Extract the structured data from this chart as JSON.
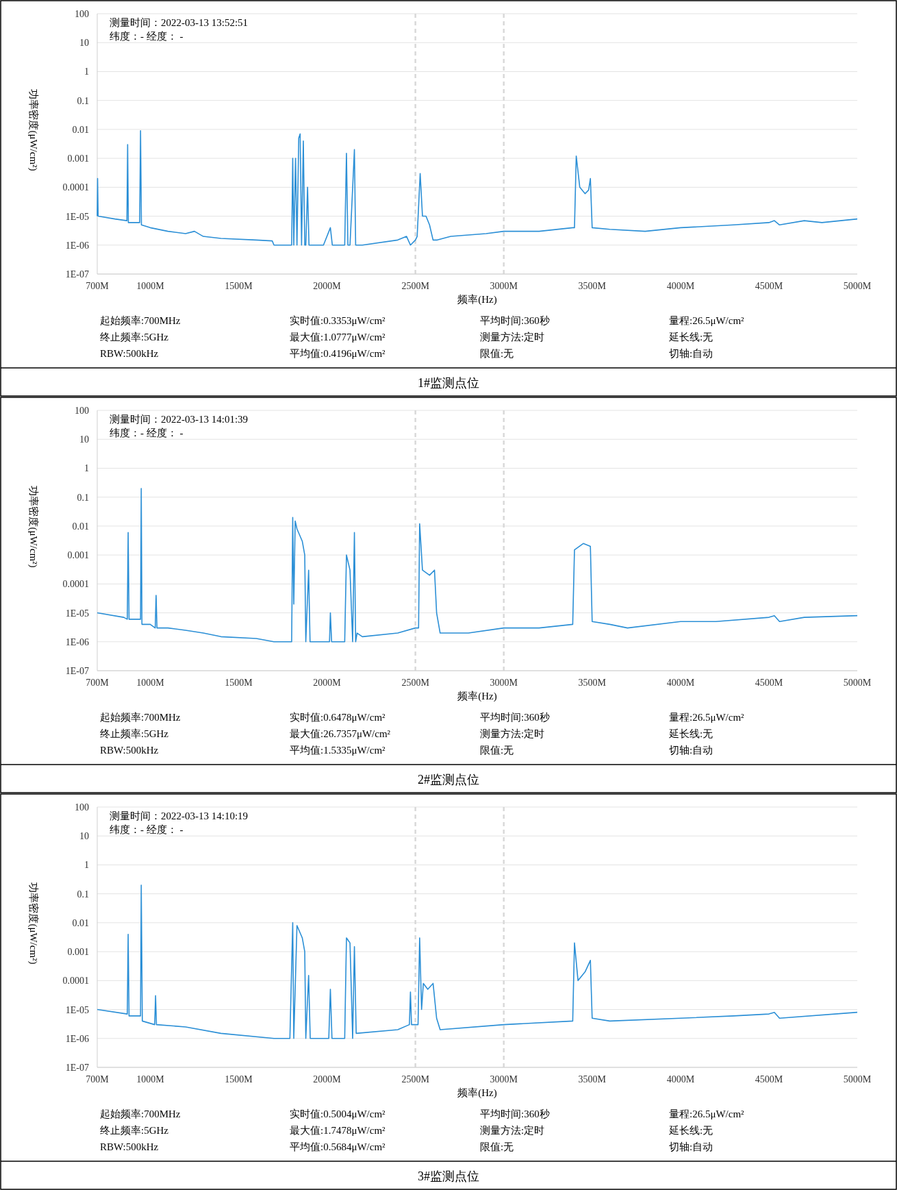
{
  "chart_data": [
    {
      "type": "line",
      "xlabel": "频率(Hz)",
      "ylabel": "功率密度(μW/cm²)",
      "log": "y",
      "grid": "y",
      "annotations": [
        "测量时间：2022-03-13 13:52:51",
        "纬度：- 经度： -",
        "起始频率:700MHz",
        "实时值:0.3353μW/cm²",
        "平均时间:360秒",
        "量程:26.5μW/cm²",
        "终止频率:5GHz",
        "最大值:1.0777μW/cm²",
        "测量方法:定时",
        "延长线:无",
        "RBW:500kHz",
        "平均值:0.4196μW/cm²",
        "限值:无",
        "切轴:自动",
        "1#监测点位"
      ],
      "xlim": [
        700,
        5000
      ],
      "xticks": [
        {
          "value": 700,
          "label": "700M"
        },
        {
          "value": 1000,
          "label": "1000M"
        },
        {
          "value": 1500,
          "label": "1500M"
        },
        {
          "value": 2000,
          "label": "2000M"
        },
        {
          "value": 2500,
          "label": "2500M"
        },
        {
          "value": 3000,
          "label": "3000M"
        },
        {
          "value": 3500,
          "label": "3500M"
        },
        {
          "value": 4000,
          "label": "4000M"
        },
        {
          "value": 4500,
          "label": "4500M"
        },
        {
          "value": 5000,
          "label": "5000M"
        }
      ],
      "ylim": [
        1e-07,
        100
      ],
      "yticks": [
        100,
        10,
        1,
        0.1,
        0.01,
        0.001,
        0.0001,
        {
          "value": 1e-05,
          "label": "1E-05"
        },
        {
          "value": 1e-06,
          "label": "1E-06"
        },
        {
          "value": 1e-07,
          "label": "1E-07"
        }
      ],
      "ref_lines": [
        {
          "axis": "x",
          "value": 2500,
          "color": "#d9d9d9",
          "line_style": "dashed"
        },
        {
          "axis": "x",
          "value": 3000,
          "color": "#d9d9d9",
          "line_style": "dashed"
        }
      ],
      "series": [
        {
          "color": "#2b8fd6",
          "x": [
            700,
            702,
            705,
            800,
            868,
            872,
            876,
            940,
            945,
            950,
            1000,
            1100,
            1200,
            1250,
            1300,
            1400,
            1600,
            1690,
            1700,
            1780,
            1800,
            1806,
            1812,
            1822,
            1830,
            1840,
            1848,
            1856,
            1866,
            1874,
            1880,
            1890,
            1898,
            1980,
            2019,
            2030,
            2100,
            2110,
            2118,
            2130,
            2155,
            2162,
            2200,
            2400,
            2450,
            2472,
            2500,
            2510,
            2527,
            2540,
            2560,
            2580,
            2600,
            2624,
            2700,
            2900,
            3000,
            3200,
            3390,
            3400,
            3410,
            3430,
            3460,
            3480,
            3490,
            3500,
            3600,
            3800,
            4000,
            4300,
            4500,
            4531,
            4560,
            4700,
            4800,
            5000
          ],
          "values": [
            1e-05,
            0.0002,
            1e-05,
            8e-06,
            7e-06,
            0.003,
            6e-06,
            6e-06,
            0.009,
            5e-06,
            4e-06,
            3e-06,
            2.5e-06,
            3e-06,
            2e-06,
            1.7e-06,
            1.5e-06,
            1.4e-06,
            1e-06,
            1e-06,
            1e-06,
            0.001,
            1e-06,
            0.001,
            1e-06,
            0.005,
            0.007,
            1e-06,
            0.004,
            1e-06,
            1e-06,
            0.0001,
            1e-06,
            1e-06,
            4e-06,
            1e-06,
            1e-06,
            0.0015,
            1e-06,
            1e-06,
            0.002,
            1e-06,
            1e-06,
            1.5e-06,
            2e-06,
            1e-06,
            1.5e-06,
            2e-06,
            0.0003,
            1e-05,
            1e-05,
            5e-06,
            1.5e-06,
            1.5e-06,
            2e-06,
            2.5e-06,
            3e-06,
            3e-06,
            4e-06,
            4e-06,
            0.0012,
            0.0001,
            6e-05,
            8e-05,
            0.0002,
            4e-06,
            3.5e-06,
            3e-06,
            4e-06,
            5e-06,
            6e-06,
            7e-06,
            5e-06,
            7e-06,
            6e-06,
            8e-06
          ]
        }
      ]
    },
    {
      "type": "line",
      "xlabel": "频率(Hz)",
      "ylabel": "功率密度(μW/cm²)",
      "log": "y",
      "grid": "y",
      "annotations": [
        "测量时间：2022-03-13 14:01:39",
        "纬度：- 经度： -",
        "起始频率:700MHz",
        "实时值:0.6478μW/cm²",
        "平均时间:360秒",
        "量程:26.5μW/cm²",
        "终止频率:5GHz",
        "最大值:26.7357μW/cm²",
        "测量方法:定时",
        "延长线:无",
        "RBW:500kHz",
        "平均值:1.5335μW/cm²",
        "限值:无",
        "切轴:自动",
        "2#监测点位"
      ],
      "xlim": [
        700,
        5000
      ],
      "xticks": [
        {
          "value": 700,
          "label": "700M"
        },
        {
          "value": 1000,
          "label": "1000M"
        },
        {
          "value": 1500,
          "label": "1500M"
        },
        {
          "value": 2000,
          "label": "2000M"
        },
        {
          "value": 2500,
          "label": "2500M"
        },
        {
          "value": 3000,
          "label": "3000M"
        },
        {
          "value": 3500,
          "label": "3500M"
        },
        {
          "value": 4000,
          "label": "4000M"
        },
        {
          "value": 4500,
          "label": "4500M"
        },
        {
          "value": 5000,
          "label": "5000M"
        }
      ],
      "ylim": [
        1e-07,
        100
      ],
      "yticks": [
        100,
        10,
        1,
        0.1,
        0.01,
        0.001,
        0.0001,
        {
          "value": 1e-05,
          "label": "1E-05"
        },
        {
          "value": 1e-06,
          "label": "1E-06"
        },
        {
          "value": 1e-07,
          "label": "1E-07"
        }
      ],
      "ref_lines": [
        {
          "axis": "x",
          "value": 2500,
          "color": "#d9d9d9",
          "line_style": "dashed"
        },
        {
          "axis": "x",
          "value": 3000,
          "color": "#d9d9d9",
          "line_style": "dashed"
        }
      ],
      "series": [
        {
          "color": "#2b8fd6",
          "x": [
            700,
            850,
            870,
            875,
            880,
            940,
            945,
            949,
            953,
            1000,
            1028,
            1033,
            1038,
            1100,
            1200,
            1300,
            1400,
            1600,
            1700,
            1790,
            1800,
            1806,
            1812,
            1820,
            1830,
            1860,
            1874,
            1880,
            1896,
            1904,
            2000,
            2014,
            2019,
            2026,
            2100,
            2110,
            2130,
            2145,
            2155,
            2162,
            2170,
            2200,
            2400,
            2500,
            2518,
            2524,
            2540,
            2580,
            2608,
            2620,
            2640,
            2800,
            3000,
            3200,
            3390,
            3400,
            3450,
            3490,
            3500,
            3600,
            3700,
            4000,
            4200,
            4500,
            4531,
            4560,
            4700,
            5000
          ],
          "values": [
            1e-05,
            7e-06,
            6e-06,
            0.006,
            6e-06,
            6e-06,
            6e-06,
            0.2,
            4e-06,
            4e-06,
            3e-06,
            4e-05,
            3e-06,
            3e-06,
            2.5e-06,
            2e-06,
            1.5e-06,
            1.3e-06,
            1e-06,
            1e-06,
            1e-06,
            0.02,
            2e-05,
            0.015,
            0.008,
            0.003,
            0.001,
            1e-06,
            0.0003,
            1e-06,
            1e-06,
            1e-06,
            1e-05,
            1e-06,
            1e-06,
            0.001,
            0.0003,
            1e-06,
            0.006,
            1e-06,
            2e-06,
            1.5e-06,
            2e-06,
            3e-06,
            3e-06,
            0.012,
            0.0003,
            0.0002,
            0.0003,
            1e-05,
            2e-06,
            2e-06,
            3e-06,
            3e-06,
            4e-06,
            0.0015,
            0.0025,
            0.002,
            5e-06,
            4e-06,
            3e-06,
            5e-06,
            5e-06,
            7e-06,
            8e-06,
            5e-06,
            7e-06,
            8e-06
          ]
        }
      ]
    },
    {
      "type": "line",
      "xlabel": "频率(Hz)",
      "ylabel": "功率密度(μW/cm²)",
      "log": "y",
      "grid": "y",
      "annotations": [
        "测量时间：2022-03-13 14:10:19",
        "纬度：- 经度： -",
        "起始频率:700MHz",
        "实时值:0.5004μW/cm²",
        "平均时间:360秒",
        "量程:26.5μW/cm²",
        "终止频率:5GHz",
        "最大值:1.7478μW/cm²",
        "测量方法:定时",
        "延长线:无",
        "RBW:500kHz",
        "平均值:0.5684μW/cm²",
        "限值:无",
        "切轴:自动",
        "3#监测点位"
      ],
      "xlim": [
        700,
        5000
      ],
      "xticks": [
        {
          "value": 700,
          "label": "700M"
        },
        {
          "value": 1000,
          "label": "1000M"
        },
        {
          "value": 1500,
          "label": "1500M"
        },
        {
          "value": 2000,
          "label": "2000M"
        },
        {
          "value": 2500,
          "label": "2500M"
        },
        {
          "value": 3000,
          "label": "3000M"
        },
        {
          "value": 3500,
          "label": "3500M"
        },
        {
          "value": 4000,
          "label": "4000M"
        },
        {
          "value": 4500,
          "label": "4500M"
        },
        {
          "value": 5000,
          "label": "5000M"
        }
      ],
      "ylim": [
        1e-07,
        100
      ],
      "yticks": [
        100,
        10,
        1,
        0.1,
        0.01,
        0.001,
        0.0001,
        {
          "value": 1e-05,
          "label": "1E-05"
        },
        {
          "value": 1e-06,
          "label": "1E-06"
        },
        {
          "value": 1e-07,
          "label": "1E-07"
        }
      ],
      "ref_lines": [
        {
          "axis": "x",
          "value": 2500,
          "color": "#d9d9d9",
          "line_style": "dashed"
        },
        {
          "axis": "x",
          "value": 3000,
          "color": "#d9d9d9",
          "line_style": "dashed"
        }
      ],
      "series": [
        {
          "color": "#2b8fd6",
          "x": [
            700,
            870,
            875,
            880,
            945,
            949,
            955,
            1025,
            1030,
            1035,
            1200,
            1400,
            1700,
            1790,
            1806,
            1812,
            1830,
            1860,
            1874,
            1880,
            1896,
            1905,
            2010,
            2019,
            2028,
            2100,
            2110,
            2130,
            2145,
            2155,
            2165,
            2400,
            2466,
            2472,
            2478,
            2515,
            2524,
            2535,
            2545,
            2570,
            2600,
            2620,
            2640,
            3000,
            3390,
            3400,
            3420,
            3460,
            3490,
            3500,
            3600,
            4000,
            4300,
            4500,
            4531,
            4560,
            5000
          ],
          "values": [
            1e-05,
            7e-06,
            0.004,
            6e-06,
            6e-06,
            0.2,
            4e-06,
            3e-06,
            3e-05,
            3e-06,
            2.5e-06,
            1.5e-06,
            1e-06,
            1e-06,
            0.01,
            1e-06,
            0.008,
            0.003,
            0.001,
            1e-06,
            0.00015,
            1e-06,
            1e-06,
            5e-05,
            1e-06,
            1e-06,
            0.003,
            0.002,
            1e-06,
            0.0015,
            1.5e-06,
            2e-06,
            3e-06,
            4e-05,
            3e-06,
            3e-06,
            0.003,
            1e-05,
            8e-05,
            5e-05,
            8e-05,
            5e-06,
            2e-06,
            3e-06,
            4e-06,
            0.002,
            0.0001,
            0.0002,
            0.0005,
            5e-06,
            4e-06,
            5e-06,
            6e-06,
            7e-06,
            8e-06,
            5e-06,
            8e-06
          ]
        }
      ]
    }
  ]
}
